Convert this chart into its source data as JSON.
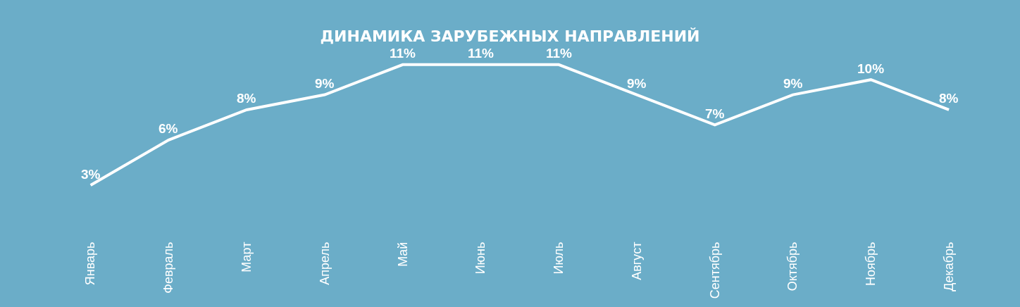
{
  "chart_data": {
    "type": "line",
    "title": "ДИНАМИКА ЗАРУБЕЖНЫХ НАПРАВЛЕНИЙ",
    "categories": [
      "Январь",
      "Февраль",
      "Март",
      "Апрель",
      "Май",
      "Июнь",
      "Июль",
      "Август",
      "Сентябрь",
      "Октябрь",
      "Ноябрь",
      "Декабрь"
    ],
    "values": [
      3,
      6,
      8,
      9,
      11,
      11,
      11,
      9,
      7,
      9,
      10,
      8
    ],
    "value_labels": [
      "3%",
      "6%",
      "8%",
      "9%",
      "11%",
      "11%",
      "11%",
      "9%",
      "7%",
      "9%",
      "10%",
      "8%"
    ],
    "color": "#ffffff",
    "marker": "none"
  }
}
